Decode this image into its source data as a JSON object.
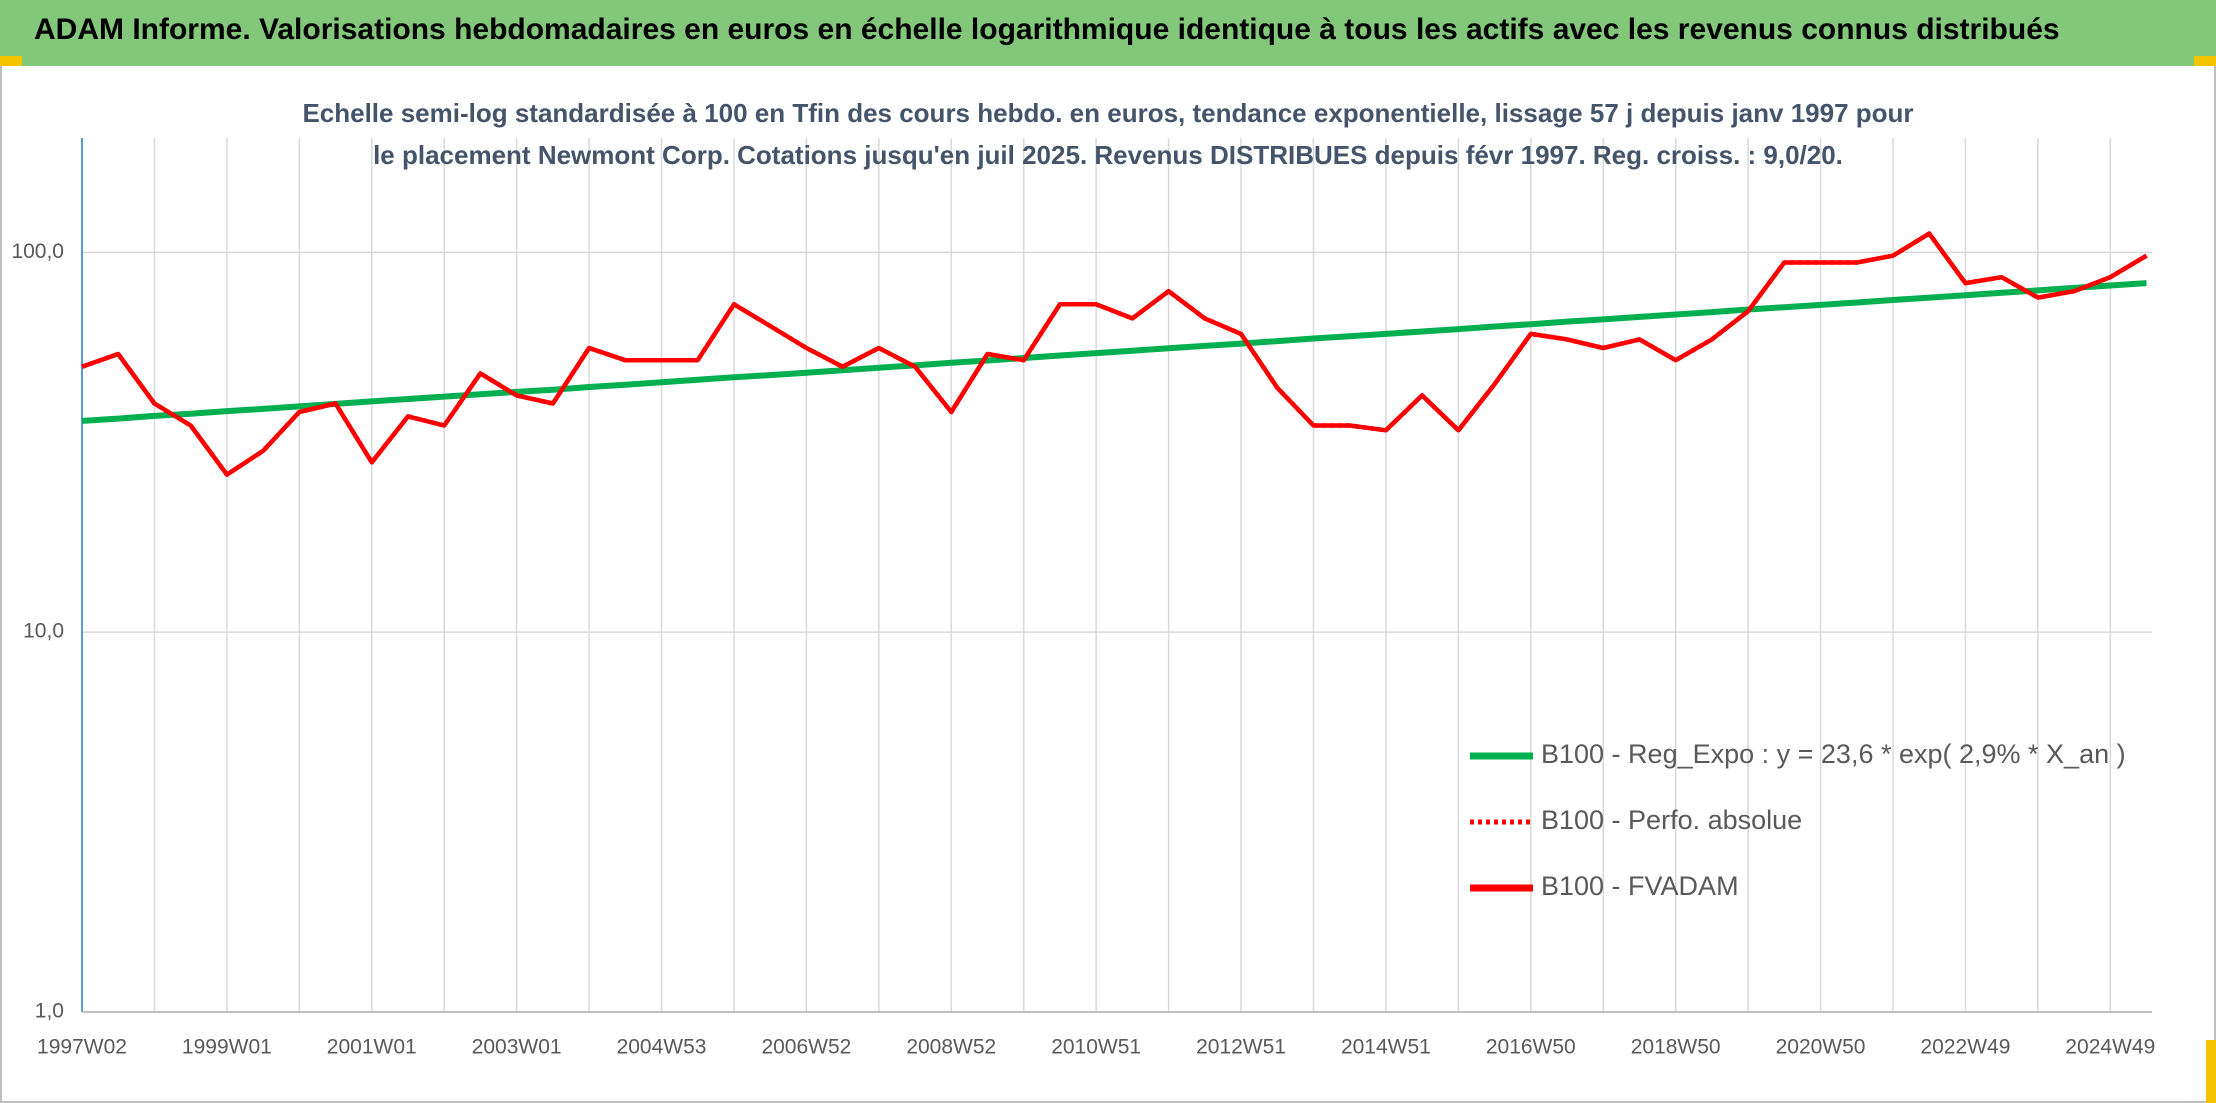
{
  "header": {
    "title": "ADAM Informe. Valorisations hebdomadaires en euros en échelle logarithmique identique à tous les actifs avec les revenus connus distribués"
  },
  "chart_data": {
    "type": "line",
    "title": "Echelle semi-log standardisée à 100 en Tfin des cours hebdo. en euros, tendance exponentielle, lissage 57 j depuis janv 1997 pour le placement Newmont Corp. Cotations jusqu'en juil 2025. Revenus DISTRIBUES depuis févr 1997. Reg. croiss. : 9,0/20.",
    "categories": [
      "1997W02",
      null,
      null,
      null,
      "1999W01",
      null,
      null,
      null,
      "2001W01",
      null,
      null,
      null,
      "2003W01",
      null,
      null,
      null,
      "2004W53",
      null,
      null,
      null,
      "2006W52",
      null,
      null,
      null,
      "2008W52",
      null,
      null,
      null,
      "2010W51",
      null,
      null,
      null,
      "2012W51",
      null,
      null,
      null,
      "2014W51",
      null,
      null,
      null,
      "2016W50",
      null,
      null,
      null,
      "2018W50",
      null,
      null,
      null,
      "2020W50",
      null,
      null,
      null,
      "2022W49",
      null,
      null,
      null,
      "2024W49",
      null
    ],
    "ylim": [
      1,
      200
    ],
    "yticks": [
      {
        "value": 1,
        "label": "1,0"
      },
      {
        "value": 10,
        "label": "10,0"
      },
      {
        "value": 100,
        "label": "100,0"
      }
    ],
    "log_y": true,
    "grid": true,
    "legend": "lower right",
    "series": [
      {
        "name": "B100 - Reg_Expo : y = 23,6 * exp( 2,9% *  X_an )",
        "color": "#00b050",
        "style": "solid",
        "values": [
          36.0,
          36.5,
          37.1,
          37.6,
          38.2,
          38.7,
          39.3,
          39.9,
          40.5,
          41.1,
          41.7,
          42.3,
          42.9,
          43.5,
          44.2,
          44.8,
          45.5,
          46.2,
          46.9,
          47.5,
          48.2,
          48.9,
          49.7,
          50.4,
          51.2,
          51.9,
          52.7,
          53.5,
          54.3,
          55.1,
          55.9,
          56.7,
          57.5,
          58.4,
          59.3,
          60.1,
          61.0,
          61.9,
          62.8,
          63.8,
          64.7,
          65.7,
          66.6,
          67.6,
          68.6,
          69.6,
          70.7,
          71.7,
          72.7,
          73.8,
          74.9,
          76.0,
          77.1,
          78.3,
          79.4,
          80.6,
          81.8,
          83.0
        ]
      },
      {
        "name": "B100 - Perfo. absolue",
        "color": "#ff0000",
        "style": "dotted",
        "values": [
          50,
          54,
          40,
          35,
          26,
          30,
          38,
          40,
          28,
          37,
          35,
          48,
          42,
          40,
          56,
          52,
          52,
          52,
          73,
          64,
          56,
          50,
          56,
          50,
          38,
          54,
          52,
          73,
          73,
          67,
          79,
          67,
          61,
          44,
          35,
          35,
          34,
          42,
          34,
          45,
          61,
          59,
          56,
          59,
          52,
          59,
          70,
          94,
          94,
          94,
          98,
          112,
          83,
          86,
          76,
          79,
          86,
          98
        ]
      },
      {
        "name": "B100 - FVADAM",
        "color": "#ff0000",
        "style": "solid",
        "values": [
          50,
          54,
          40,
          35,
          26,
          30,
          38,
          40,
          28,
          37,
          35,
          48,
          42,
          40,
          56,
          52,
          52,
          52,
          73,
          64,
          56,
          50,
          56,
          50,
          38,
          54,
          52,
          73,
          73,
          67,
          79,
          67,
          61,
          44,
          35,
          35,
          34,
          42,
          34,
          45,
          61,
          59,
          56,
          59,
          52,
          59,
          70,
          94,
          94,
          94,
          98,
          112,
          83,
          86,
          76,
          79,
          86,
          98
        ]
      }
    ]
  }
}
